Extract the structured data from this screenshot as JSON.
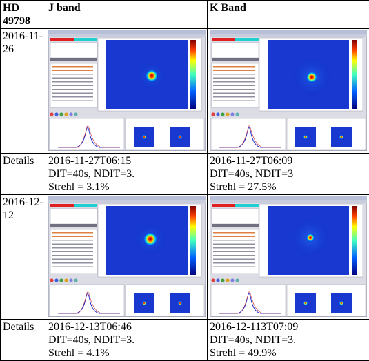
{
  "table": {
    "header": [
      "HD 49798",
      "J band",
      "K Band"
    ],
    "rows": [
      [
        "2016-11-26"
      ],
      [
        "Details",
        [
          "2016-11-27T06:15",
          "DIT=40s, NDIT=3.",
          "Strehl = 3.1%"
        ],
        [
          "2016-11-27T06:09",
          "DIT=40s, NDIT=3",
          "Strehl = 27.5%"
        ]
      ],
      [
        "2016-12-12"
      ],
      [
        "Details",
        [
          "2016-12-13T06:46",
          "DIT=40s, NDIT=3.",
          "Strehl = 4.1%"
        ],
        [
          "2016-12-113T07:09",
          "DIT=40s, NDIT=3.",
          "Strehl = 49.9%"
        ]
      ]
    ]
  }
}
